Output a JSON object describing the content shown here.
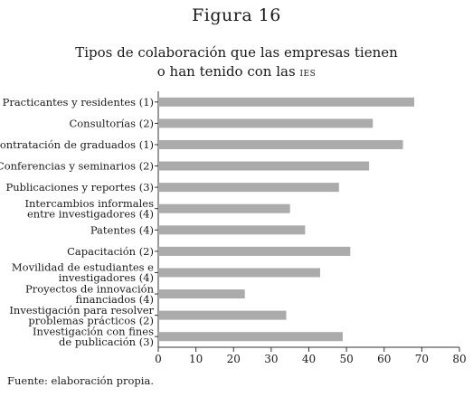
{
  "figure_label": "Figura 16",
  "title_main": "Tipos de colaboración que las empresas tienen",
  "title_line2": "o han tenido con las",
  "title_acronym": "IES",
  "source_note": "Fuente: elaboración propia.",
  "colors": {
    "bar": "#ababab",
    "axis": "#333333",
    "text": "#1a1a1a"
  },
  "chart_data": {
    "type": "bar",
    "orientation": "horizontal",
    "title": "Tipos de colaboración que las empresas tienen o han tenido con las IES",
    "categories": [
      [
        "Practicantes y residentes (1)"
      ],
      [
        "Consultorías (2)"
      ],
      [
        "Contratación de graduados (1)"
      ],
      [
        "Conferencias y seminarios (2)"
      ],
      [
        "Publicaciones y reportes (3)"
      ],
      [
        "Intercambios informales",
        "entre investigadores (4)"
      ],
      [
        "Patentes (4)"
      ],
      [
        "Capacitación (2)"
      ],
      [
        "Movilidad de estudiantes e",
        "investigadores (4)"
      ],
      [
        "Proyectos de innovación",
        "financiados (4)"
      ],
      [
        "Investigación para resolver",
        "problemas prácticos (2)"
      ],
      [
        "Investigación con fines",
        "de publicación (3)"
      ]
    ],
    "values": [
      68,
      57,
      65,
      56,
      48,
      35,
      39,
      51,
      43,
      23,
      34,
      49
    ],
    "xlim": [
      0,
      80
    ],
    "xticks": [
      0,
      10,
      20,
      30,
      40,
      50,
      60,
      70,
      80
    ],
    "grid": false,
    "legend": "none"
  }
}
